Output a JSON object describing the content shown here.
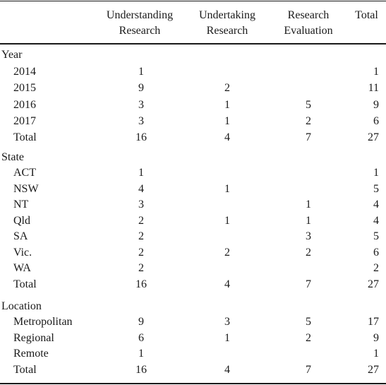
{
  "headers": {
    "col1_line1": "Understanding",
    "col1_line2": "Research",
    "col2_line1": "Undertaking",
    "col2_line2": "Research",
    "col3_line1": "Research",
    "col3_line2": "Evaluation",
    "col4": "Total"
  },
  "sections": {
    "year": {
      "label": "Year",
      "rows": [
        {
          "label": "2014",
          "c1": "1",
          "c2": "",
          "c3": "",
          "c4": "1"
        },
        {
          "label": "2015",
          "c1": "9",
          "c2": "2",
          "c3": "",
          "c4": "11"
        },
        {
          "label": "2016",
          "c1": "3",
          "c2": "1",
          "c3": "5",
          "c4": "9"
        },
        {
          "label": "2017",
          "c1": "3",
          "c2": "1",
          "c3": "2",
          "c4": "6"
        },
        {
          "label": "Total",
          "c1": "16",
          "c2": "4",
          "c3": "7",
          "c4": "27"
        }
      ]
    },
    "state": {
      "label": "State",
      "rows": [
        {
          "label": "ACT",
          "c1": "1",
          "c2": "",
          "c3": "",
          "c4": "1"
        },
        {
          "label": "NSW",
          "c1": "4",
          "c2": "1",
          "c3": "",
          "c4": "5"
        },
        {
          "label": "NT",
          "c1": "3",
          "c2": "",
          "c3": "1",
          "c4": "4"
        },
        {
          "label": "Qld",
          "c1": "2",
          "c2": "1",
          "c3": "1",
          "c4": "4"
        },
        {
          "label": "SA",
          "c1": "2",
          "c2": "",
          "c3": "3",
          "c4": "5"
        },
        {
          "label": "Vic.",
          "c1": "2",
          "c2": "2",
          "c3": "2",
          "c4": "6"
        },
        {
          "label": "WA",
          "c1": "2",
          "c2": "",
          "c3": "",
          "c4": "2"
        },
        {
          "label": "Total",
          "c1": "16",
          "c2": "4",
          "c3": "7",
          "c4": "27"
        }
      ]
    },
    "location": {
      "label": "Location",
      "rows": [
        {
          "label": "Metropolitan",
          "c1": "9",
          "c2": "3",
          "c3": "5",
          "c4": "17"
        },
        {
          "label": "Regional",
          "c1": "6",
          "c2": "1",
          "c3": "2",
          "c4": "9"
        },
        {
          "label": "Remote",
          "c1": "1",
          "c2": "",
          "c3": "",
          "c4": "1"
        },
        {
          "label": "Total",
          "c1": "16",
          "c2": "4",
          "c3": "7",
          "c4": "27"
        }
      ]
    }
  }
}
